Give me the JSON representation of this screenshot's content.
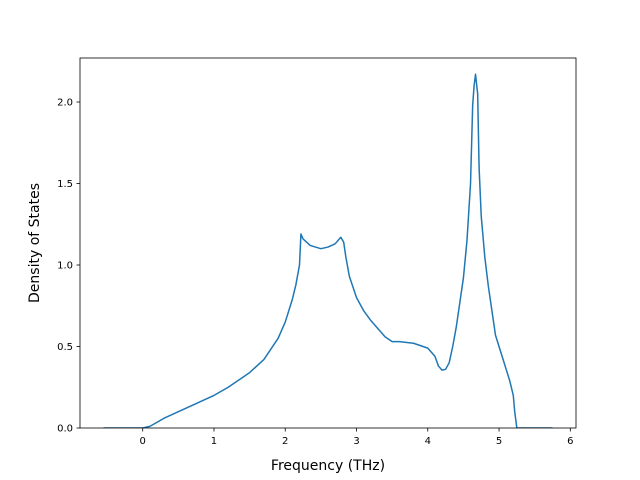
{
  "chart_data": {
    "type": "line",
    "title": "",
    "xlabel": "Frequency (THz)",
    "ylabel": "Density of States",
    "xlim": [
      -0.88,
      6.08
    ],
    "ylim": [
      0.0,
      2.27
    ],
    "grid": false,
    "xticks": [
      0,
      1,
      2,
      3,
      4,
      5,
      6
    ],
    "xtick_labels": [
      "0",
      "1",
      "2",
      "3",
      "4",
      "5",
      "6"
    ],
    "yticks": [
      0.0,
      0.5,
      1.0,
      1.5,
      2.0
    ],
    "ytick_labels": [
      "0.0",
      "0.5",
      "1.0",
      "1.5",
      "2.0"
    ],
    "series": [
      {
        "color": "#1f77b4",
        "x": [
          -0.55,
          -0.3,
          0.0,
          0.1,
          0.3,
          0.5,
          0.7,
          1.0,
          1.2,
          1.5,
          1.7,
          1.9,
          2.0,
          2.1,
          2.15,
          2.2,
          2.22,
          2.25,
          2.35,
          2.5,
          2.6,
          2.7,
          2.78,
          2.82,
          2.85,
          2.9,
          3.0,
          3.1,
          3.2,
          3.3,
          3.4,
          3.5,
          3.52,
          3.6,
          3.8,
          4.0,
          4.1,
          4.15,
          4.2,
          4.25,
          4.3,
          4.35,
          4.4,
          4.5,
          4.55,
          4.6,
          4.63,
          4.65,
          4.67,
          4.7,
          4.72,
          4.75,
          4.8,
          4.85,
          4.9,
          4.95,
          5.0,
          5.05,
          5.1,
          5.15,
          5.2,
          5.22,
          5.25,
          5.5,
          5.75
        ],
        "y": [
          0.0,
          0.0,
          0.0,
          0.01,
          0.06,
          0.1,
          0.14,
          0.2,
          0.25,
          0.34,
          0.42,
          0.55,
          0.65,
          0.79,
          0.88,
          1.0,
          1.19,
          1.16,
          1.12,
          1.1,
          1.11,
          1.13,
          1.17,
          1.14,
          1.05,
          0.93,
          0.8,
          0.72,
          0.66,
          0.61,
          0.56,
          0.53,
          0.53,
          0.53,
          0.52,
          0.49,
          0.44,
          0.38,
          0.355,
          0.36,
          0.4,
          0.5,
          0.62,
          0.92,
          1.15,
          1.5,
          1.98,
          2.1,
          2.17,
          2.05,
          1.6,
          1.3,
          1.05,
          0.87,
          0.72,
          0.57,
          0.5,
          0.43,
          0.36,
          0.29,
          0.2,
          0.1,
          0.0,
          0.0,
          0.0
        ]
      }
    ]
  }
}
